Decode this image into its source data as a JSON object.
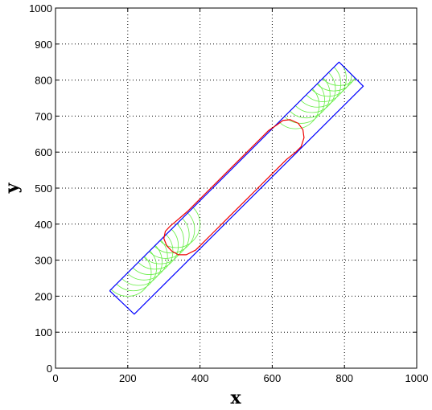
{
  "chart_data": {
    "type": "line",
    "title": "",
    "xlabel": "x",
    "ylabel": "y",
    "xlim": [
      0,
      1000
    ],
    "ylim": [
      0,
      1000
    ],
    "xticks": [
      0,
      200,
      400,
      600,
      800,
      1000
    ],
    "yticks": [
      0,
      100,
      200,
      300,
      400,
      500,
      600,
      700,
      800,
      900,
      1000
    ],
    "grid": true,
    "legend": "none",
    "series": [
      {
        "role": "boundary rectangle",
        "color": "#0000ff",
        "points": [
          [
            150,
            215
          ],
          [
            218,
            150
          ],
          [
            852,
            783
          ],
          [
            785,
            850
          ],
          [
            150,
            215
          ]
        ]
      },
      {
        "role": "swept circles",
        "color": "#66ee44",
        "radius": 65,
        "centers": [
          [
            200,
            265
          ],
          [
            215,
            280
          ],
          [
            230,
            295
          ],
          [
            245,
            310
          ],
          [
            260,
            325
          ],
          [
            275,
            340
          ],
          [
            290,
            355
          ],
          [
            305,
            370
          ],
          [
            320,
            385
          ],
          [
            335,
            400
          ],
          [
            665,
            730
          ],
          [
            680,
            745
          ],
          [
            695,
            760
          ],
          [
            710,
            775
          ],
          [
            725,
            790
          ],
          [
            740,
            805
          ],
          [
            755,
            820
          ],
          [
            770,
            835
          ],
          [
            785,
            850
          ]
        ]
      },
      {
        "role": "inner contour",
        "color": "#ee0000",
        "points": [
          [
            330,
            405
          ],
          [
            318,
            395
          ],
          [
            304,
            380
          ],
          [
            300,
            360
          ],
          [
            308,
            340
          ],
          [
            322,
            325
          ],
          [
            340,
            315
          ],
          [
            362,
            315
          ],
          [
            388,
            328
          ],
          [
            405,
            345
          ],
          [
            440,
            380
          ],
          [
            480,
            420
          ],
          [
            520,
            460
          ],
          [
            560,
            500
          ],
          [
            600,
            540
          ],
          [
            640,
            580
          ],
          [
            665,
            600
          ],
          [
            680,
            615
          ],
          [
            688,
            640
          ],
          [
            685,
            662
          ],
          [
            672,
            680
          ],
          [
            650,
            690
          ],
          [
            630,
            688
          ],
          [
            612,
            675
          ],
          [
            590,
            660
          ],
          [
            560,
            630
          ],
          [
            520,
            590
          ],
          [
            480,
            550
          ],
          [
            440,
            510
          ],
          [
            400,
            470
          ],
          [
            365,
            435
          ],
          [
            330,
            405
          ]
        ]
      }
    ]
  }
}
